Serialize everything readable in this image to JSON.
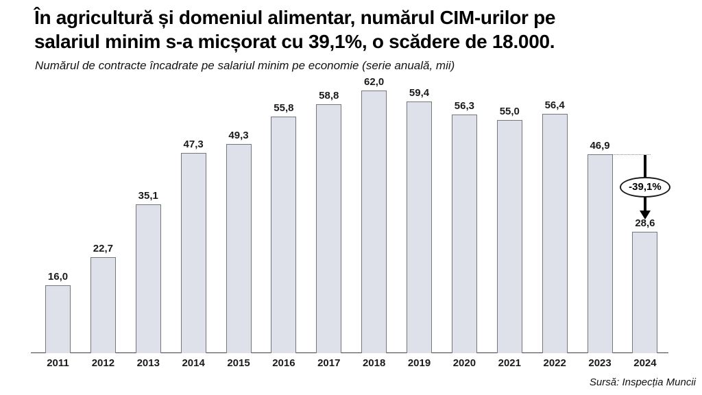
{
  "header": {
    "title_lines": [
      "În agricultură și domeniul alimentar, numărul CIM-urilor pe",
      "salariul minim s-a micșorat cu 39,1%, o scădere de 18.000."
    ],
    "subtitle": "Numărul de contracte încadrate pe salariul minim pe economie (serie anuală, mii)"
  },
  "chart_data": {
    "type": "bar",
    "title": "Numărul de contracte încadrate pe salariul minim pe economie (serie anuală, mii)",
    "categories": [
      "2011",
      "2012",
      "2013",
      "2014",
      "2015",
      "2016",
      "2017",
      "2018",
      "2019",
      "2020",
      "2021",
      "2022",
      "2023",
      "2024"
    ],
    "values": [
      16.0,
      22.7,
      35.1,
      47.3,
      49.3,
      55.8,
      58.8,
      62.0,
      59.4,
      56.3,
      55.0,
      56.4,
      46.9,
      28.6
    ],
    "value_labels": [
      "16,0",
      "22,7",
      "35,1",
      "47,3",
      "49,3",
      "55,8",
      "58,8",
      "62,0",
      "59,4",
      "56,3",
      "55,0",
      "56,4",
      "46,9",
      "28,6"
    ],
    "xlabel": "",
    "ylabel": "",
    "ylim": [
      0,
      65
    ],
    "grid": false,
    "legend": false,
    "bar_fill_color": "#dee1ea",
    "bar_border_color": "#75757d",
    "annotation": {
      "label": "-39,1%",
      "from_category": "2023",
      "to_category": "2024",
      "from_index": 12,
      "to_index": 13
    }
  },
  "footer": {
    "source": "Sursă: Inspecția Muncii"
  }
}
